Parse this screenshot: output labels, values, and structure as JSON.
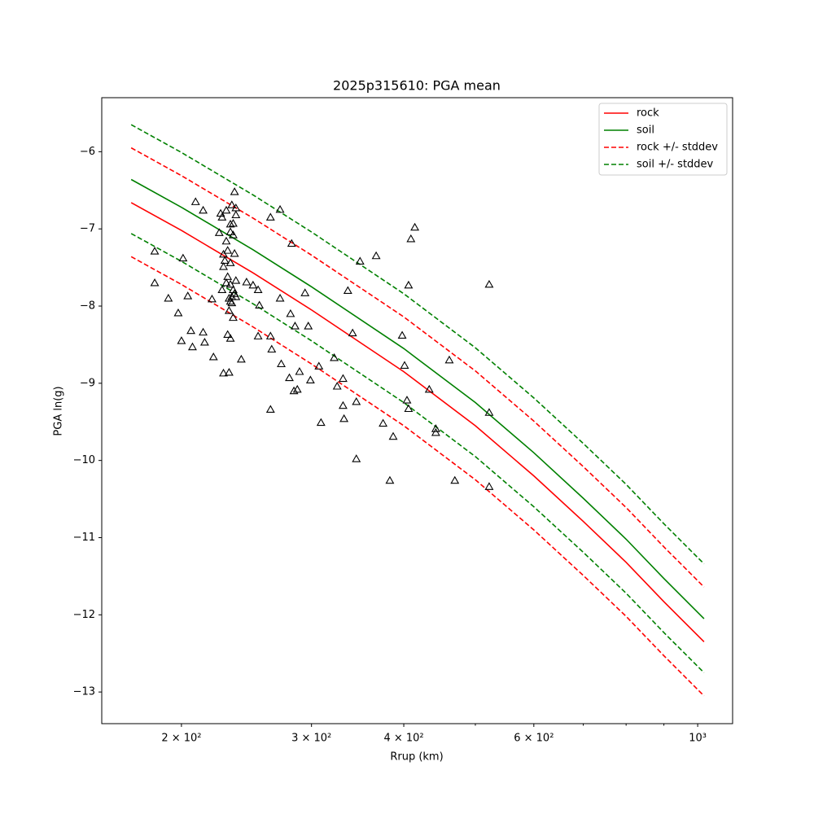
{
  "chart_data": {
    "type": "line",
    "title": "2025p315610: PGA mean",
    "x_label": "Rrup (km)",
    "y_label": "PGA ln(g)",
    "xscale": "log",
    "xlim": [
      156,
      1115
    ],
    "ylim": [
      -13.41,
      -5.3
    ],
    "xticks": [
      {
        "value": 200,
        "label": "2 × 10²"
      },
      {
        "value": 300,
        "label": "3 × 10²"
      },
      {
        "value": 400,
        "label": "4 × 10²"
      },
      {
        "value": 600,
        "label": "6 × 10²"
      },
      {
        "value": 1000,
        "label": "10³"
      }
    ],
    "xminorticks": [
      500,
      700,
      800,
      900
    ],
    "yticks": [
      {
        "value": -6,
        "label": "−6"
      },
      {
        "value": -7,
        "label": "−7"
      },
      {
        "value": -8,
        "label": "−8"
      },
      {
        "value": -9,
        "label": "−9"
      },
      {
        "value": -10,
        "label": "−10"
      },
      {
        "value": -11,
        "label": "−11"
      },
      {
        "value": -12,
        "label": "−12"
      },
      {
        "value": -13,
        "label": "−13"
      }
    ],
    "legend": "upper right",
    "x": [
      171,
      200,
      250,
      300,
      400,
      500,
      600,
      700,
      800,
      900,
      1020
    ],
    "series": [
      {
        "name": "rock",
        "color": "#ff0000",
        "linestyle": "solid",
        "values": [
          -6.66,
          -7.02,
          -7.57,
          -8.05,
          -8.85,
          -9.55,
          -10.2,
          -10.79,
          -11.32,
          -11.83,
          -12.35
        ]
      },
      {
        "name": "soil",
        "color": "#008000",
        "linestyle": "solid",
        "values": [
          -6.36,
          -6.72,
          -7.27,
          -7.75,
          -8.55,
          -9.25,
          -9.9,
          -10.49,
          -11.02,
          -11.53,
          -12.05
        ]
      },
      {
        "name": "rock +/- stddev",
        "color": "#ff0000",
        "linestyle": "dashed",
        "upper": [
          -5.95,
          -6.31,
          -6.86,
          -7.34,
          -8.14,
          -8.84,
          -9.49,
          -10.08,
          -10.61,
          -11.12,
          -11.64
        ],
        "lower": [
          -7.36,
          -7.72,
          -8.27,
          -8.75,
          -9.55,
          -10.25,
          -10.9,
          -11.49,
          -12.02,
          -12.53,
          -13.05
        ]
      },
      {
        "name": "soil +/- stddev",
        "color": "#008000",
        "linestyle": "dashed",
        "upper": [
          -5.65,
          -6.01,
          -6.56,
          -7.04,
          -7.84,
          -8.54,
          -9.19,
          -9.78,
          -10.31,
          -10.82,
          -11.34
        ],
        "lower": [
          -7.06,
          -7.42,
          -7.97,
          -8.45,
          -9.25,
          -9.95,
          -10.6,
          -11.19,
          -11.72,
          -12.23,
          -12.75
        ]
      }
    ],
    "observations": {
      "marker": "triangle",
      "color": "#000000",
      "x": [
        184,
        184,
        192,
        198,
        200,
        201,
        204,
        206,
        207,
        209,
        214,
        214,
        215,
        220,
        221,
        225,
        226,
        227,
        227,
        228,
        228,
        228,
        229,
        230,
        230,
        230,
        231,
        231,
        231,
        232,
        232,
        232,
        233,
        233,
        233,
        233,
        233,
        233,
        234,
        234,
        234,
        235,
        235,
        235,
        235,
        236,
        236,
        236,
        237,
        237,
        237,
        237,
        241,
        245,
        250,
        254,
        254,
        255,
        264,
        264,
        264,
        265,
        272,
        272,
        273,
        280,
        281,
        282,
        284,
        285,
        287,
        289,
        294,
        297,
        299,
        307,
        309,
        322,
        325,
        331,
        331,
        332,
        336,
        341,
        345,
        345,
        349,
        367,
        375,
        383,
        387,
        398,
        401,
        404,
        406,
        406,
        409,
        414,
        433,
        442,
        442,
        461,
        469,
        522,
        522,
        522
      ],
      "y": [
        -7.29,
        -7.7,
        -7.9,
        -8.09,
        -8.45,
        -7.38,
        -7.87,
        -8.32,
        -8.53,
        -6.65,
        -6.76,
        -8.34,
        -8.47,
        -7.91,
        -8.66,
        -7.05,
        -6.8,
        -7.79,
        -6.85,
        -7.49,
        -7.33,
        -8.87,
        -7.41,
        -7.16,
        -6.76,
        -7.7,
        -8.37,
        -7.62,
        -7.28,
        -8.86,
        -8.06,
        -7.9,
        -7.44,
        -7.04,
        -6.94,
        -8.42,
        -7.94,
        -7.72,
        -6.69,
        -7.96,
        -7.88,
        -8.15,
        -7.08,
        -7.79,
        -6.93,
        -6.52,
        -7.32,
        -7.84,
        -6.73,
        -7.67,
        -6.82,
        -7.88,
        -8.69,
        -7.69,
        -7.73,
        -8.39,
        -7.79,
        -7.99,
        -6.85,
        -8.39,
        -9.34,
        -8.56,
        -6.75,
        -7.9,
        -8.75,
        -8.93,
        -8.1,
        -7.19,
        -9.1,
        -8.26,
        -9.08,
        -8.85,
        -7.83,
        -8.26,
        -8.96,
        -8.78,
        -9.51,
        -8.67,
        -9.04,
        -9.29,
        -8.94,
        -9.46,
        -7.8,
        -8.35,
        -9.24,
        -9.98,
        -7.42,
        -7.35,
        -9.52,
        -10.26,
        -9.69,
        -8.38,
        -8.77,
        -9.22,
        -9.33,
        -7.73,
        -7.13,
        -6.98,
        -9.08,
        -9.59,
        -9.64,
        -8.7,
        -10.26,
        -7.72,
        -9.38,
        -10.34
      ]
    }
  }
}
